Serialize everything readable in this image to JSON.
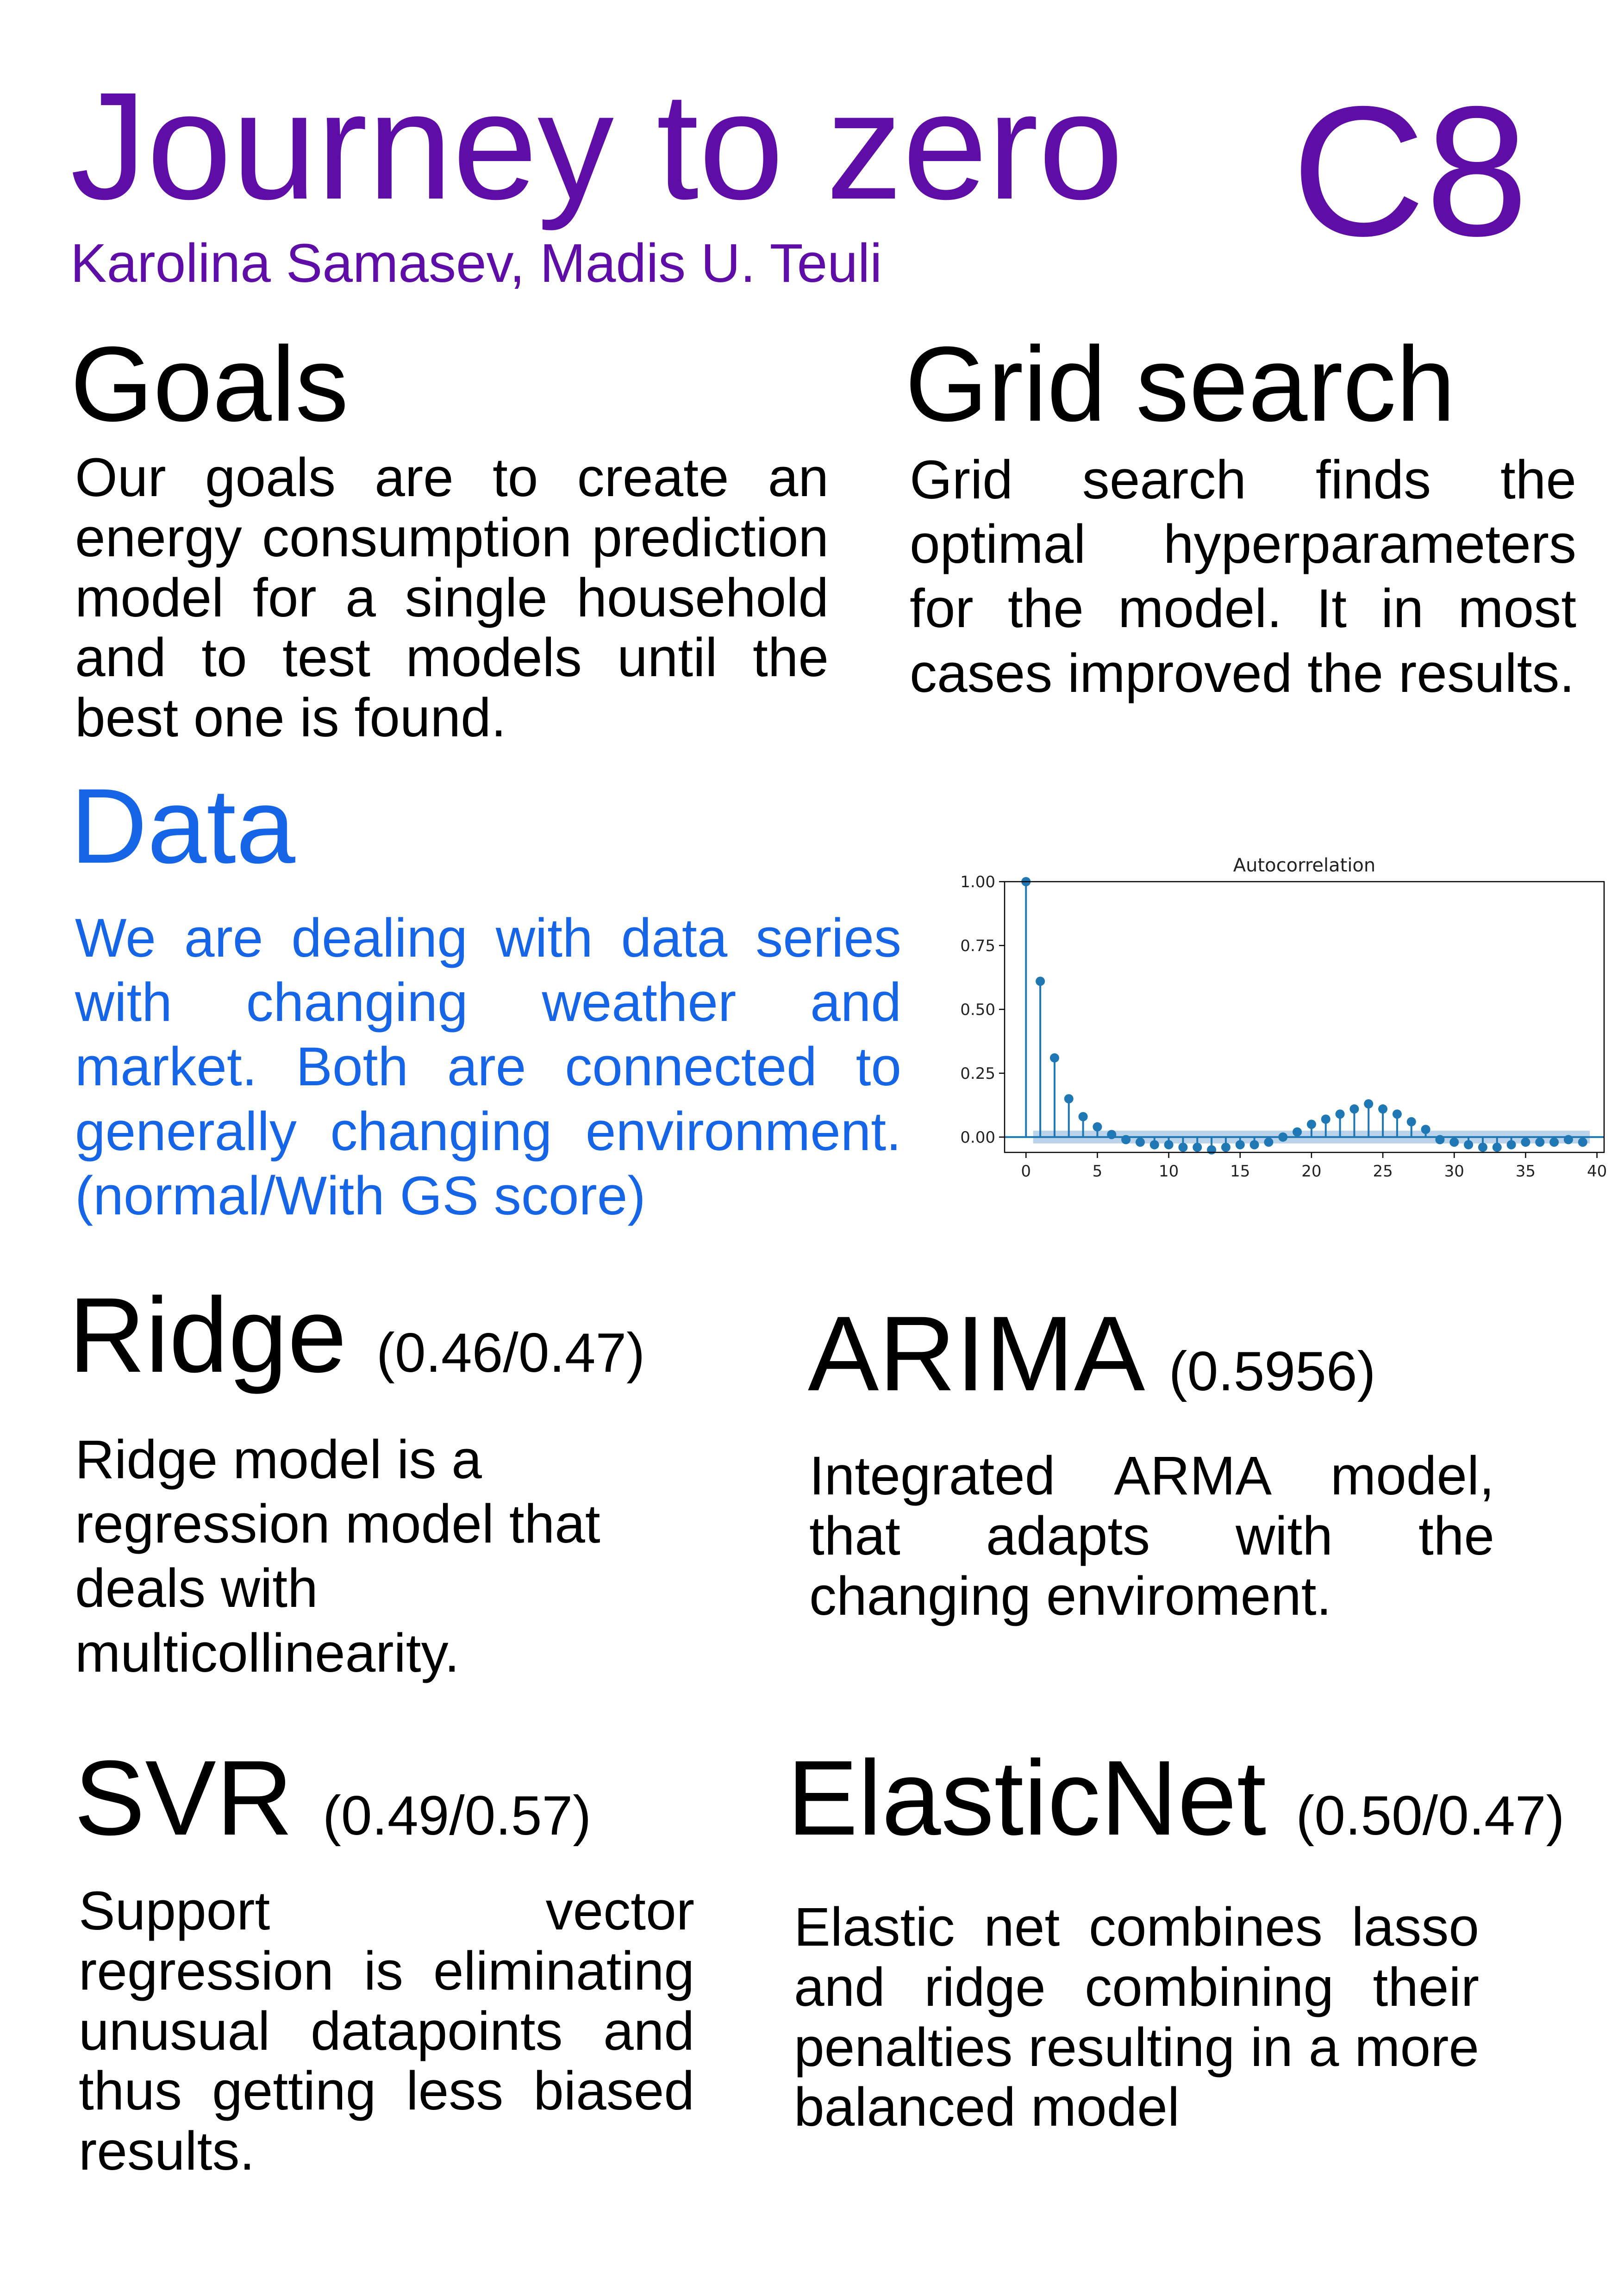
{
  "header": {
    "title": "Journey to zero",
    "code": "C8",
    "authors": "Karolina Samasev, Madis U. Teuli"
  },
  "goals": {
    "heading": "Goals",
    "text": "Our goals are to create an energy consumption prediction model for a single household and to test models until the best one is  found."
  },
  "grid_search": {
    "heading": "Grid search",
    "text": "Grid search finds the optimal hyperparameters for the model. It in most cases improved the results."
  },
  "data": {
    "heading": "Data",
    "text": "We are dealing with data series with changing weather and market. Both are connected to generally changing environment. (normal/With GS score)"
  },
  "ridge": {
    "heading": "Ridge",
    "score": "(0.46/0.47)",
    "text": "Ridge model is a regression model that deals with multicollinearity."
  },
  "arima": {
    "heading": "ARIMA",
    "score": "(0.5956)",
    "text": "Integrated ARMA model, that adapts with the changing enviroment."
  },
  "svr": {
    "heading": "SVR",
    "score": "(0.49/0.57)",
    "text": "Support vector regression is eliminating unusual datapoints and thus getting less biased results."
  },
  "elasticnet": {
    "heading": "ElasticNet",
    "score": "(0.50/0.47)",
    "text": "Elastic net combines lasso and ridge combining their penalties resulting in a more balanced model"
  },
  "colors": {
    "title_purple": "#5e0ea6",
    "data_blue": "#1565e6",
    "stem_blue": "#1f77b4",
    "band_blue": "#a9c8e6"
  },
  "chart_data": {
    "type": "stem",
    "title": "Autocorrelation",
    "x": [
      0,
      1,
      2,
      3,
      4,
      5,
      6,
      7,
      8,
      9,
      10,
      11,
      12,
      13,
      14,
      15,
      16,
      17,
      18,
      19,
      20,
      21,
      22,
      23,
      24,
      25,
      26,
      27,
      28,
      29,
      30,
      31,
      32,
      33,
      34,
      35,
      36,
      37,
      38,
      39
    ],
    "values": [
      1.0,
      0.61,
      0.31,
      0.15,
      0.08,
      0.04,
      0.01,
      -0.01,
      -0.02,
      -0.03,
      -0.03,
      -0.04,
      -0.04,
      -0.05,
      -0.04,
      -0.03,
      -0.03,
      -0.02,
      0.0,
      0.02,
      0.05,
      0.07,
      0.09,
      0.11,
      0.13,
      0.11,
      0.09,
      0.06,
      0.03,
      -0.01,
      -0.02,
      -0.03,
      -0.04,
      -0.04,
      -0.03,
      -0.02,
      -0.02,
      -0.02,
      -0.01,
      -0.02
    ],
    "confidence_band": 0.025,
    "xticks": [
      "0",
      "5",
      "10",
      "15",
      "20",
      "25",
      "30",
      "35",
      "40"
    ],
    "yticks": [
      "0.00",
      "0.25",
      "0.50",
      "0.75",
      "1.00"
    ],
    "xlim": [
      -1.5,
      40.5
    ],
    "ylim": [
      -0.06,
      1.0
    ],
    "grid": false
  }
}
